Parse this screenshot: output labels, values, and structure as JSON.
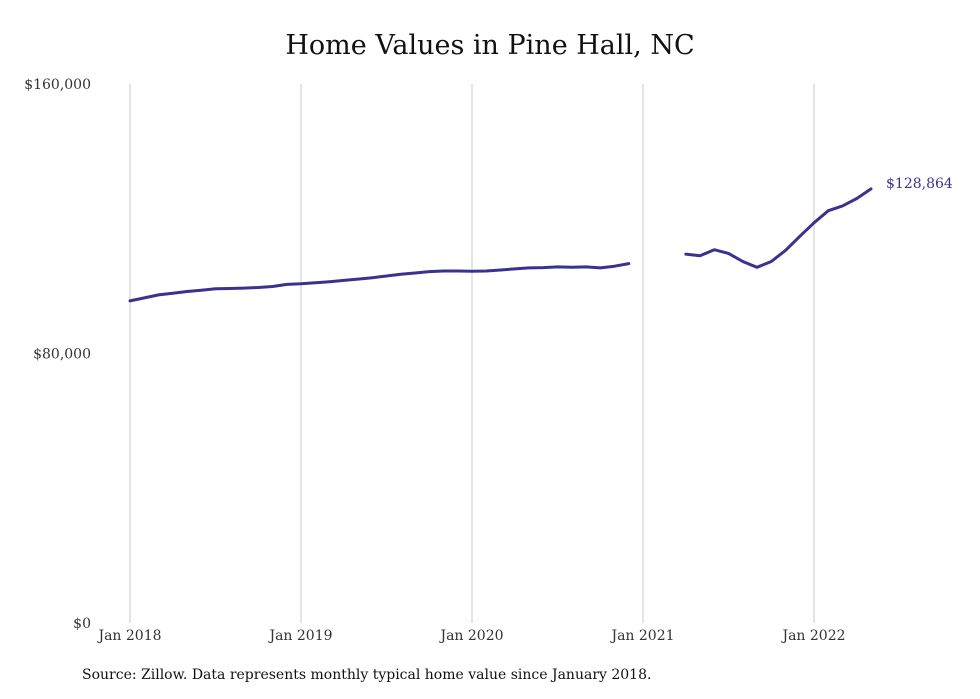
{
  "chart_data": {
    "type": "line",
    "title": "Home Values in Pine Hall, NC",
    "source_note": "Source: Zillow. Data represents monthly typical home value since January 2018.",
    "xlabel": "",
    "ylabel": "",
    "x_ticks": [
      "Jan 2018",
      "Jan 2019",
      "Jan 2020",
      "Jan 2021",
      "Jan 2022"
    ],
    "y_ticks": [
      "$0",
      "$80,000",
      "$160,000"
    ],
    "ylim": [
      0,
      160000
    ],
    "xlim": [
      "2018-01",
      "2022-05"
    ],
    "grid": "vertical",
    "end_label": "$128,864",
    "line_color": "#3b3290",
    "grid_color": "#c8c8c8",
    "series": [
      {
        "values": [
          {
            "date": "2018-01",
            "value": 95600
          },
          {
            "date": "2018-02",
            "value": 96500
          },
          {
            "date": "2018-03",
            "value": 97400
          },
          {
            "date": "2018-04",
            "value": 97900
          },
          {
            "date": "2018-05",
            "value": 98400
          },
          {
            "date": "2018-06",
            "value": 98800
          },
          {
            "date": "2018-07",
            "value": 99200
          },
          {
            "date": "2018-08",
            "value": 99300
          },
          {
            "date": "2018-09",
            "value": 99400
          },
          {
            "date": "2018-10",
            "value": 99600
          },
          {
            "date": "2018-11",
            "value": 99900
          },
          {
            "date": "2018-12",
            "value": 100500
          },
          {
            "date": "2019-01",
            "value": 100700
          },
          {
            "date": "2019-02",
            "value": 101000
          },
          {
            "date": "2019-03",
            "value": 101300
          },
          {
            "date": "2019-04",
            "value": 101700
          },
          {
            "date": "2019-05",
            "value": 102100
          },
          {
            "date": "2019-06",
            "value": 102500
          },
          {
            "date": "2019-07",
            "value": 103000
          },
          {
            "date": "2019-08",
            "value": 103500
          },
          {
            "date": "2019-09",
            "value": 103900
          },
          {
            "date": "2019-10",
            "value": 104300
          },
          {
            "date": "2019-11",
            "value": 104500
          },
          {
            "date": "2019-12",
            "value": 104500
          },
          {
            "date": "2020-01",
            "value": 104400
          },
          {
            "date": "2020-02",
            "value": 104500
          },
          {
            "date": "2020-03",
            "value": 104800
          },
          {
            "date": "2020-04",
            "value": 105100
          },
          {
            "date": "2020-05",
            "value": 105400
          },
          {
            "date": "2020-06",
            "value": 105500
          },
          {
            "date": "2020-07",
            "value": 105700
          },
          {
            "date": "2020-08",
            "value": 105600
          },
          {
            "date": "2020-09",
            "value": 105700
          },
          {
            "date": "2020-10",
            "value": 105400
          },
          {
            "date": "2020-11",
            "value": 105900
          },
          {
            "date": "2020-12",
            "value": 106700
          },
          {
            "date": "2021-01",
            "value": null
          },
          {
            "date": "2021-02",
            "value": null
          },
          {
            "date": "2021-03",
            "value": null
          },
          {
            "date": "2021-04",
            "value": 109500
          },
          {
            "date": "2021-05",
            "value": 109000
          },
          {
            "date": "2021-06",
            "value": 110800
          },
          {
            "date": "2021-07",
            "value": 109700
          },
          {
            "date": "2021-08",
            "value": 107300
          },
          {
            "date": "2021-09",
            "value": 105600
          },
          {
            "date": "2021-10",
            "value": 107300
          },
          {
            "date": "2021-11",
            "value": 110600
          },
          {
            "date": "2021-12",
            "value": 114800
          },
          {
            "date": "2022-01",
            "value": 118800
          },
          {
            "date": "2022-02",
            "value": 122400
          },
          {
            "date": "2022-03",
            "value": 123800
          },
          {
            "date": "2022-04",
            "value": 126000
          },
          {
            "date": "2022-05",
            "value": 128864
          }
        ]
      }
    ]
  }
}
